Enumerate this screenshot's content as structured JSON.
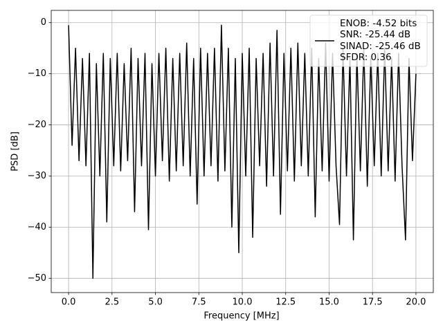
{
  "chart_data": {
    "type": "line",
    "xlabel": "Frequency [MHz]",
    "ylabel": "PSD [dB]",
    "x": [
      0,
      0.2,
      0.4,
      0.6,
      0.8,
      1.0,
      1.2,
      1.4,
      1.6,
      1.8,
      2.0,
      2.2,
      2.4,
      2.6,
      2.8,
      3.0,
      3.2,
      3.4,
      3.6,
      3.8,
      4.0,
      4.2,
      4.4,
      4.6,
      4.8,
      5.0,
      5.2,
      5.4,
      5.6,
      5.8,
      6.0,
      6.2,
      6.4,
      6.6,
      6.8,
      7.0,
      7.2,
      7.4,
      7.6,
      7.8,
      8.0,
      8.2,
      8.4,
      8.6,
      8.8,
      9.0,
      9.2,
      9.4,
      9.6,
      9.8,
      10.0,
      10.2,
      10.4,
      10.6,
      10.8,
      11.0,
      11.2,
      11.4,
      11.6,
      11.8,
      12.0,
      12.2,
      12.4,
      12.6,
      12.8,
      13.0,
      13.2,
      13.4,
      13.6,
      13.8,
      14.0,
      14.2,
      14.4,
      14.6,
      14.8,
      15.0,
      15.2,
      15.4,
      15.6,
      15.8,
      16.0,
      16.2,
      16.4,
      16.6,
      16.8,
      17.0,
      17.2,
      17.4,
      17.6,
      17.8,
      18.0,
      18.2,
      18.4,
      18.6,
      18.8,
      19.0,
      19.2,
      19.4,
      19.6,
      19.8,
      20.0
    ],
    "series": [
      {
        "name": "ENOB: -4.52 bits\nSNR: -25.44 dB\nSINAD: -25.46 dB\nSFDR: 0.36",
        "color": "#000000",
        "values": [
          -0.5,
          -24,
          -5,
          -27,
          -7,
          -28,
          -6,
          -50,
          -8,
          -30,
          -6,
          -39,
          -7,
          -28,
          -6,
          -29,
          -8,
          -27,
          -5,
          -37,
          -7,
          -28,
          -6,
          -40.5,
          -8,
          -30,
          -6,
          -27,
          -5,
          -31,
          -7,
          -29,
          -6,
          -28,
          -4,
          -30,
          -7,
          -35.5,
          -5,
          -30,
          -6,
          -28,
          -5,
          -31,
          -0.5,
          -29,
          -5,
          -40,
          -7,
          -45,
          -6,
          -30,
          -5,
          -42,
          -7,
          -28,
          -6,
          -32,
          -4,
          -30,
          -1.5,
          -37.5,
          -6,
          -29,
          -5,
          -31,
          -4,
          -28,
          -6,
          -30,
          -5,
          -38,
          -7,
          -29,
          -4,
          -31,
          -6,
          -28,
          -39.5,
          -5,
          -30,
          -7,
          -42.5,
          -6,
          -29,
          -5,
          -32,
          -7,
          -28,
          -6,
          -30,
          -5,
          -29,
          -7,
          -31,
          -6,
          -28,
          -42.5,
          -7,
          -27,
          -10
        ]
      }
    ],
    "xlim": [
      -1.0,
      21.0
    ],
    "ylim": [
      -52.8,
      2.4
    ],
    "xticks": [
      {
        "value": 0,
        "label": "0.0"
      },
      2.5,
      {
        "value": 5,
        "label": "5.0"
      },
      7.5,
      {
        "value": 10,
        "label": "10.0"
      },
      12.5,
      {
        "value": 15,
        "label": "15.0"
      },
      17.5,
      {
        "value": 20,
        "label": "20.0"
      }
    ],
    "yticks": [
      0,
      {
        "value": -10,
        "label": "−10"
      },
      {
        "value": -20,
        "label": "−20"
      },
      {
        "value": -30,
        "label": "−30"
      },
      {
        "value": -40,
        "label": "−40"
      },
      {
        "value": -50,
        "label": "−50"
      }
    ],
    "grid": true,
    "legend": "upper right"
  }
}
